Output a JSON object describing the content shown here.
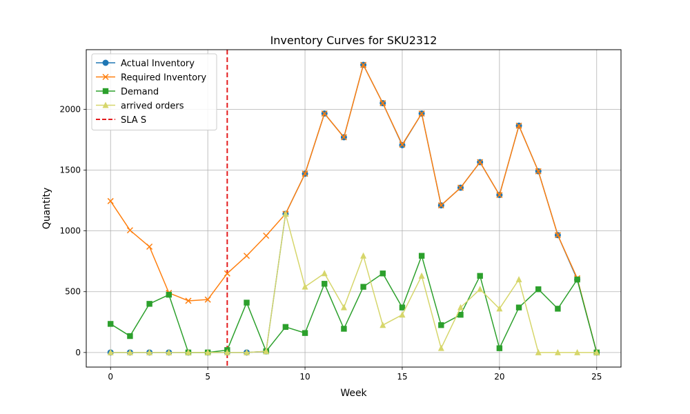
{
  "chart_data": {
    "type": "line",
    "title": "Inventory Curves for SKU2312",
    "xlabel": "Week",
    "ylabel": "Quantity",
    "xlim": [
      -1.25,
      26.25
    ],
    "ylim": [
      -120,
      2490
    ],
    "xticks": [
      0,
      5,
      10,
      15,
      20,
      25
    ],
    "yticks": [
      0,
      500,
      1000,
      1500,
      2000
    ],
    "grid": true,
    "legend_position": "top-left",
    "x": [
      0,
      1,
      2,
      3,
      4,
      5,
      6,
      7,
      8,
      9,
      10,
      11,
      12,
      13,
      14,
      15,
      16,
      17,
      18,
      19,
      20,
      21,
      22,
      23,
      24,
      25
    ],
    "series": [
      {
        "name": "Actual Inventory",
        "color": "#1f77b4",
        "marker": "circle",
        "values": [
          0,
          0,
          0,
          0,
          0,
          0,
          0,
          0,
          10,
          1140,
          1470,
          1965,
          1770,
          2365,
          2050,
          1705,
          1965,
          1210,
          1355,
          1565,
          1295,
          1865,
          1490,
          965,
          600,
          0
        ]
      },
      {
        "name": "Required Inventory",
        "color": "#ff7f0e",
        "marker": "x",
        "values": [
          1245,
          1005,
          870,
          490,
          425,
          435,
          650,
          795,
          960,
          1140,
          1470,
          1965,
          1770,
          2365,
          2050,
          1710,
          1965,
          1210,
          1355,
          1565,
          1295,
          1865,
          1490,
          965,
          610,
          0
        ]
      },
      {
        "name": "Demand",
        "color": "#2ca02c",
        "marker": "square",
        "values": [
          235,
          135,
          400,
          475,
          0,
          0,
          20,
          410,
          10,
          210,
          160,
          565,
          195,
          540,
          650,
          370,
          795,
          225,
          310,
          630,
          35,
          370,
          520,
          360,
          600,
          0
        ]
      },
      {
        "name": "arrived orders",
        "color": "#d6d66b",
        "marker": "triangle",
        "values": [
          0,
          0,
          0,
          0,
          0,
          0,
          0,
          0,
          10,
          1140,
          540,
          650,
          370,
          795,
          225,
          310,
          630,
          35,
          370,
          520,
          360,
          600,
          0,
          0,
          0,
          0
        ]
      }
    ],
    "reference_lines": [
      {
        "name": "SLA S",
        "orientation": "vertical",
        "x": 6,
        "color": "#e31a1c",
        "style": "dashed"
      }
    ]
  }
}
